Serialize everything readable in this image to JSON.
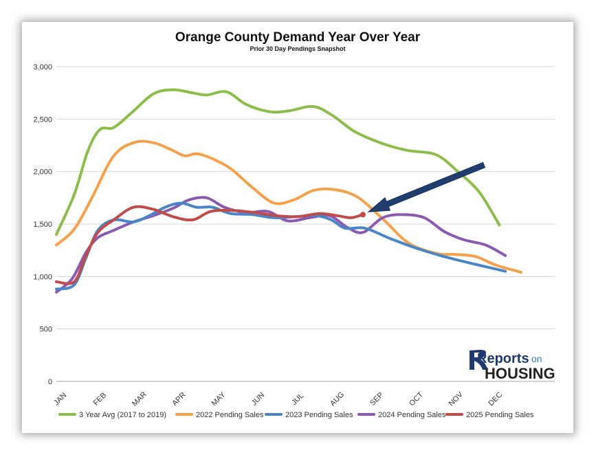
{
  "chart_data": {
    "type": "line",
    "title": "Orange County Demand Year Over Year",
    "subtitle": "Prior 30 Day Pendings Snapshot",
    "categories": [
      "JAN",
      "FEB",
      "MAR",
      "APR",
      "MAY",
      "JUN",
      "JUL",
      "AUG",
      "SEP",
      "OCT",
      "NOV",
      "DEC"
    ],
    "y_ticks": [
      "0",
      "500",
      "1,000",
      "1,500",
      "2,000",
      "2,500",
      "3,000"
    ],
    "ylim": [
      0,
      3000
    ],
    "x_range": [
      0,
      12.6
    ],
    "grid": "horizontal",
    "legend_position": "bottom",
    "series": [
      {
        "name": "3 Year Avg (2017 to 2019)",
        "color": "#8cbd4b",
        "x": [
          0,
          0.45,
          0.8,
          1.1,
          1.45,
          1.9,
          2.45,
          2.95,
          3.45,
          3.8,
          4.3,
          4.8,
          5.4,
          5.9,
          6.5,
          7.0,
          7.55,
          8.3,
          8.9,
          9.6,
          10.15,
          10.7,
          11.2,
          11.7
        ],
        "y": [
          1400,
          1780,
          2200,
          2400,
          2420,
          2560,
          2740,
          2780,
          2750,
          2730,
          2760,
          2640,
          2570,
          2580,
          2620,
          2530,
          2380,
          2260,
          2200,
          2160,
          2000,
          1800,
          1490,
          null
        ]
      },
      {
        "name": "2022 Pending Sales",
        "color": "#f5a04b",
        "x": [
          0,
          0.45,
          0.9,
          1.45,
          2.0,
          2.5,
          2.95,
          3.25,
          3.55,
          3.9,
          4.4,
          4.95,
          5.5,
          6.0,
          6.5,
          7.0,
          7.6,
          8.25,
          8.9,
          9.6,
          10.1,
          10.6,
          11.1,
          11.75
        ],
        "y": [
          1300,
          1450,
          1750,
          2150,
          2280,
          2270,
          2200,
          2150,
          2170,
          2130,
          2030,
          1850,
          1700,
          1730,
          1820,
          1830,
          1760,
          1550,
          1320,
          1220,
          1210,
          1190,
          1110,
          1040
        ]
      },
      {
        "name": "2023 Pending Sales",
        "color": "#4a86c5",
        "x": [
          0,
          0.45,
          0.75,
          1.05,
          1.45,
          1.95,
          2.35,
          2.75,
          3.15,
          3.55,
          3.95,
          4.4,
          4.95,
          5.5,
          6.05,
          6.55,
          6.95,
          7.3,
          7.8,
          8.45,
          9.1,
          9.8,
          10.55,
          11.35,
          11.75
        ],
        "y": [
          880,
          920,
          1180,
          1440,
          1540,
          1520,
          1580,
          1660,
          1700,
          1660,
          1660,
          1600,
          1590,
          1560,
          1570,
          1580,
          1540,
          1460,
          1460,
          1360,
          1270,
          1190,
          1120,
          1050,
          null
        ]
      },
      {
        "name": "2024 Pending Sales",
        "color": "#8a5ab0",
        "x": [
          0,
          0.4,
          0.75,
          1.05,
          1.45,
          1.95,
          2.45,
          2.95,
          3.35,
          3.8,
          4.25,
          4.8,
          5.35,
          5.85,
          6.4,
          6.9,
          7.35,
          7.75,
          8.25,
          8.75,
          9.3,
          9.8,
          10.3,
          10.85,
          11.35,
          11.75
        ],
        "y": [
          850,
          980,
          1230,
          1370,
          1440,
          1520,
          1580,
          1650,
          1730,
          1750,
          1660,
          1610,
          1620,
          1530,
          1560,
          1580,
          1470,
          1420,
          1560,
          1590,
          1560,
          1430,
          1350,
          1300,
          1200,
          null
        ]
      },
      {
        "name": "2025 Pending Sales",
        "color": "#c04b4b",
        "x": [
          0,
          0.45,
          0.75,
          1.05,
          1.45,
          1.95,
          2.45,
          2.95,
          3.45,
          3.9,
          4.45,
          5.0,
          5.55,
          6.1,
          6.65,
          7.1,
          7.45,
          7.75
        ],
        "y": [
          950,
          950,
          1200,
          1420,
          1540,
          1660,
          1640,
          1570,
          1540,
          1620,
          1630,
          1610,
          1580,
          1570,
          1600,
          1580,
          1560,
          1590
        ]
      }
    ],
    "annotation": {
      "type": "arrow",
      "points_to": {
        "series": "2025 Pending Sales",
        "x": 7.75,
        "y": 1590
      },
      "color": "#1f3e6e"
    }
  },
  "logo": {
    "reports": "Reports",
    "on": "on",
    "housing": "HOUSING"
  }
}
